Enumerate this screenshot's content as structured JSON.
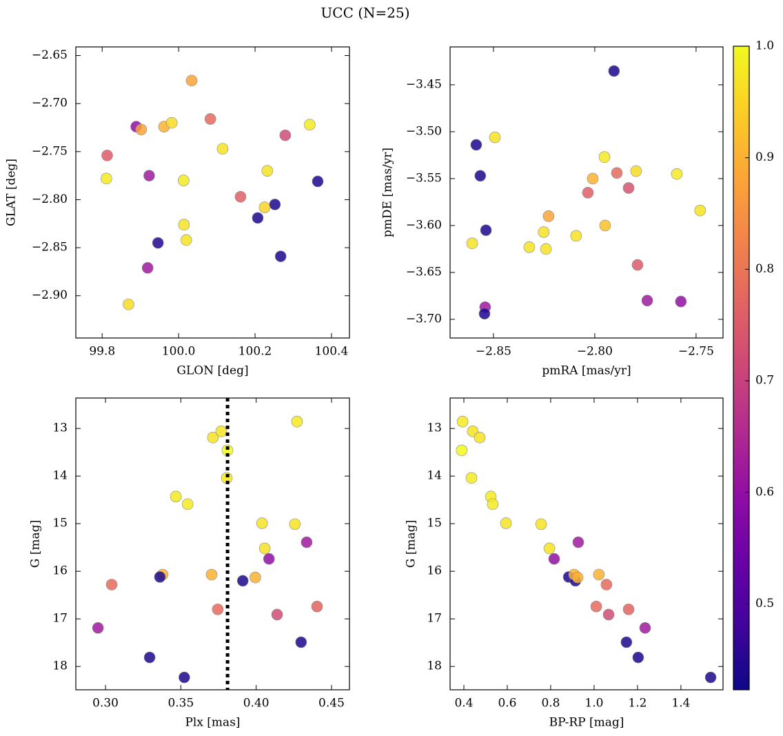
{
  "title": "UCC (N=25)",
  "chart_data": [
    {
      "type": "scatter",
      "xlabel": "GLON [deg]",
      "ylabel": "GLAT [deg]",
      "xlim": [
        99.731,
        100.447
      ],
      "ylim": [
        -2.944,
        -2.641
      ],
      "xticks": [
        99.8,
        {
          "value": 100.0,
          "label": "100.0"
        },
        100.2,
        100.4
      ],
      "yticks": [
        {
          "value": -2.65,
          "label": "−2.65"
        },
        {
          "value": -2.7,
          "label": "−2.70"
        },
        {
          "value": -2.75,
          "label": "−2.75"
        },
        {
          "value": -2.8,
          "label": "−2.80"
        },
        {
          "value": -2.85,
          "label": "−2.85"
        },
        {
          "value": -2.9,
          "label": "−2.90"
        }
      ],
      "x": [
        99.813,
        99.811,
        99.889,
        99.902,
        99.923,
        99.919,
        99.946,
        99.869,
        99.962,
        99.982,
        100.013,
        100.014,
        100.02,
        100.034,
        100.083,
        100.115,
        100.162,
        100.207,
        100.225,
        100.232,
        100.252,
        100.267,
        100.279,
        100.343,
        100.364
      ],
      "y": [
        -2.754,
        -2.778,
        -2.724,
        -2.727,
        -2.775,
        -2.871,
        -2.845,
        -2.909,
        -2.724,
        -2.72,
        -2.78,
        -2.826,
        -2.842,
        -2.676,
        -2.716,
        -2.747,
        -2.797,
        -2.819,
        -2.808,
        -2.77,
        -2.805,
        -2.859,
        -2.733,
        -2.722,
        -2.781
      ],
      "c": [
        0.75,
        0.98,
        0.6,
        0.88,
        0.62,
        0.62,
        0.45,
        0.96,
        0.9,
        0.96,
        0.98,
        0.97,
        0.97,
        0.88,
        0.78,
        0.97,
        0.76,
        0.44,
        0.95,
        0.97,
        0.44,
        0.44,
        0.72,
        0.98,
        0.44
      ]
    },
    {
      "type": "scatter",
      "xlabel": "pmRA [mas/yr]",
      "ylabel": "pmDE [mas/yr]",
      "xlim": [
        -2.8714,
        -2.7367
      ],
      "ylim": [
        -3.7199,
        -3.4096
      ],
      "xticks": [
        {
          "value": -2.85,
          "label": "−2.85"
        },
        {
          "value": -2.8,
          "label": "−2.80"
        },
        {
          "value": -2.75,
          "label": "−2.75"
        }
      ],
      "yticks": [
        {
          "value": -3.45,
          "label": "−3.45"
        },
        {
          "value": -3.5,
          "label": "−3.50"
        },
        {
          "value": -3.55,
          "label": "−3.55"
        },
        {
          "value": -3.6,
          "label": "−3.60"
        },
        {
          "value": -3.65,
          "label": "−3.65"
        },
        {
          "value": -3.7,
          "label": "−3.70"
        }
      ],
      "x": [
        -2.7905,
        -2.8585,
        -2.8565,
        -2.8493,
        -2.8605,
        -2.8537,
        -2.8541,
        -2.8544,
        -2.8323,
        -2.8252,
        -2.8241,
        -2.8228,
        -2.8092,
        -2.8034,
        -2.801,
        -2.7952,
        -2.7949,
        -2.7891,
        -2.7833,
        -2.7796,
        -2.7789,
        -2.7741,
        -2.7595,
        -2.7575,
        -2.748
      ],
      "y": [
        -3.4353,
        -3.514,
        -3.547,
        -3.506,
        -3.619,
        -3.605,
        -3.687,
        -3.694,
        -3.623,
        -3.607,
        -3.625,
        -3.59,
        -3.611,
        -3.565,
        -3.55,
        -3.527,
        -3.6,
        -3.544,
        -3.56,
        -3.542,
        -3.642,
        -3.68,
        -3.545,
        -3.681,
        -3.584
      ],
      "c": [
        0.44,
        0.44,
        0.44,
        0.97,
        0.97,
        0.44,
        0.62,
        0.44,
        0.97,
        0.97,
        0.97,
        0.88,
        0.97,
        0.76,
        0.9,
        0.98,
        0.92,
        0.78,
        0.74,
        0.96,
        0.75,
        0.62,
        0.98,
        0.6,
        0.97
      ]
    },
    {
      "type": "scatter",
      "xlabel": "Plx [mas]",
      "ylabel": "G [mag]",
      "xlim": [
        0.2803,
        0.4619
      ],
      "ylim": [
        18.49,
        12.36
      ],
      "xticks": [
        {
          "value": 0.3,
          "label": "0.30"
        },
        0.35,
        {
          "value": 0.4,
          "label": "0.40"
        },
        0.45
      ],
      "yticks": [
        13,
        14,
        15,
        16,
        17,
        18
      ],
      "vline": 0.381,
      "x": [
        0.4271,
        0.3713,
        0.3768,
        0.3809,
        0.3805,
        0.3467,
        0.3545,
        0.4039,
        0.4257,
        0.4057,
        0.4085,
        0.4335,
        0.3379,
        0.3361,
        0.3704,
        0.3911,
        0.3994,
        0.3041,
        0.3745,
        0.4139,
        0.4404,
        0.295,
        0.4298,
        0.3293,
        0.3523
      ],
      "y": [
        12.855,
        13.19,
        13.06,
        13.46,
        14.04,
        14.43,
        14.59,
        14.99,
        15.01,
        15.52,
        15.74,
        15.39,
        16.07,
        16.12,
        16.07,
        16.2,
        16.13,
        16.28,
        16.8,
        16.91,
        16.74,
        17.19,
        17.49,
        17.81,
        18.23
      ],
      "c": [
        0.98,
        0.97,
        0.97,
        1.0,
        0.98,
        0.98,
        0.98,
        0.97,
        0.97,
        0.97,
        0.6,
        0.62,
        0.9,
        0.44,
        0.9,
        0.44,
        0.9,
        0.78,
        0.78,
        0.72,
        0.77,
        0.62,
        0.44,
        0.44,
        0.44
      ]
    },
    {
      "type": "scatter",
      "xlabel": "BP-RP [mag]",
      "ylabel": "G [mag]",
      "xlim": [
        0.3365,
        1.594
      ],
      "ylim": [
        18.49,
        12.36
      ],
      "xticks": [
        0.4,
        0.6,
        0.8,
        {
          "value": 1.0,
          "label": "1.0"
        },
        1.2,
        1.4
      ],
      "yticks": [
        13,
        14,
        15,
        16,
        17,
        18
      ],
      "x": [
        0.394,
        0.441,
        0.473,
        0.39,
        0.435,
        0.524,
        0.533,
        0.594,
        0.756,
        0.794,
        0.816,
        0.927,
        0.883,
        0.914,
        0.908,
        0.924,
        1.022,
        1.057,
        1.01,
        1.067,
        1.159,
        1.235,
        1.149,
        1.203,
        1.537
      ],
      "y": [
        12.855,
        13.06,
        13.19,
        13.46,
        14.04,
        14.43,
        14.59,
        14.99,
        15.01,
        15.52,
        15.74,
        15.39,
        16.12,
        16.2,
        16.07,
        16.13,
        16.07,
        16.28,
        16.74,
        16.91,
        16.8,
        17.19,
        17.49,
        17.81,
        18.23
      ],
      "c": [
        0.98,
        0.97,
        0.97,
        1.0,
        0.98,
        0.98,
        0.98,
        0.97,
        0.97,
        0.97,
        0.6,
        0.62,
        0.44,
        0.44,
        0.9,
        0.9,
        0.9,
        0.78,
        0.78,
        0.72,
        0.77,
        0.62,
        0.44,
        0.44,
        0.44
      ]
    }
  ],
  "colorbar": {
    "cmap": "plasma",
    "clim": [
      0.423,
      1.0
    ],
    "ticks": [
      0.5,
      0.6,
      0.7,
      0.8,
      0.9,
      {
        "value": 1.0,
        "label": "1.0"
      }
    ]
  }
}
